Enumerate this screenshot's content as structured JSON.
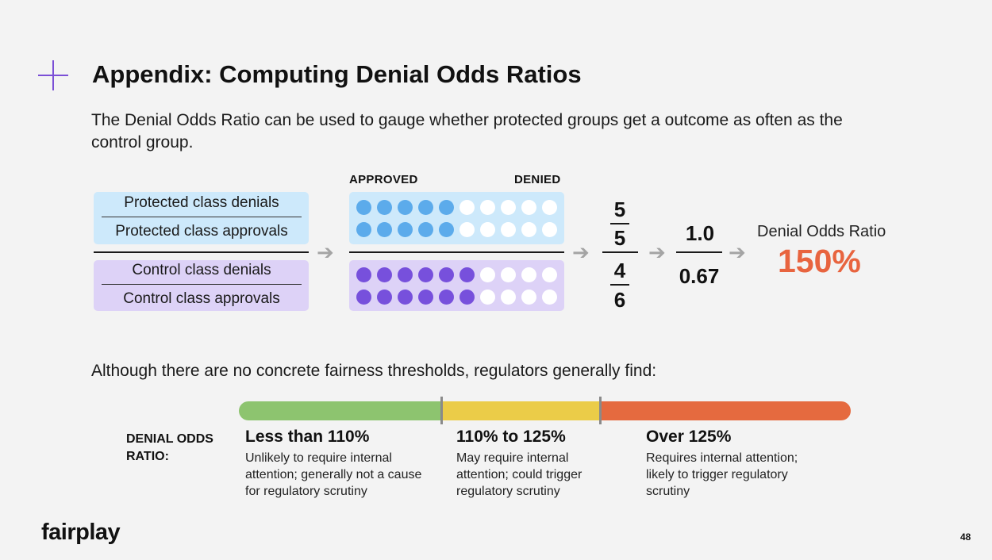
{
  "header": {
    "title": "Appendix: Computing Denial Odds Ratios",
    "intro": "The Denial Odds Ratio can be used to gauge whether protected groups get a outcome as often as the control group."
  },
  "diagram": {
    "approved_header": "APPROVED",
    "denied_header": "DENIED",
    "protected_denials": "Protected class denials",
    "protected_approvals": "Protected class approvals",
    "control_denials": "Control class denials",
    "control_approvals": "Control class approvals",
    "protected_filled": 5,
    "control_filled": 6,
    "dots_per_row": 10,
    "protected_color": "#5cabeb",
    "control_color": "#7750dc",
    "frac1_top": "5",
    "frac1_bottom": "5",
    "frac2_top": "4",
    "frac2_bottom": "6",
    "ratio_top": "1.0",
    "ratio_bottom": "0.67",
    "result_label": "Denial Odds Ratio",
    "result_value": "150%",
    "result_color": "#e8643f"
  },
  "thresholds": {
    "intro": "Although there are no concrete fairness thresholds, regulators generally find:",
    "label_line1": "DENIAL ODDS",
    "label_line2": "RATIO:",
    "ranges": [
      {
        "title": "Less than 110%",
        "description": "Unlikely to require internal attention; generally not a cause for regulatory scrutiny",
        "color": "#8dc46f"
      },
      {
        "title": "110% to 125%",
        "description": "May require internal attention; could trigger regulatory scrutiny",
        "color": "#ebcc48"
      },
      {
        "title": "Over 125%",
        "description": "Requires internal attention; likely to trigger regulatory scrutiny",
        "color": "#e56a3f"
      }
    ]
  },
  "footer": {
    "logo": "fairplay",
    "page_number": "48"
  }
}
